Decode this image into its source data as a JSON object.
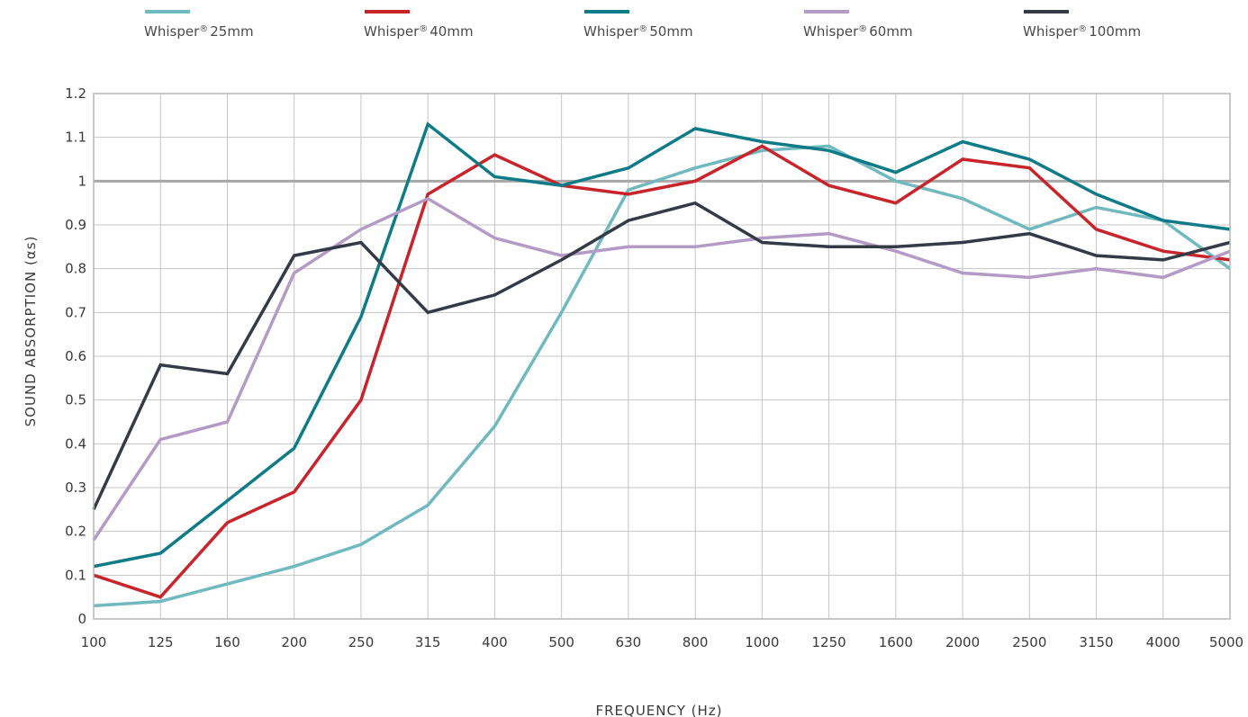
{
  "chart_data": {
    "type": "line",
    "xlabel": "FREQUENCY (Hz)",
    "ylabel": "SOUND ABSORPTION (αs)",
    "categories": [
      "100",
      "125",
      "160",
      "200",
      "250",
      "315",
      "400",
      "500",
      "630",
      "800",
      "1000",
      "1250",
      "1600",
      "2000",
      "2500",
      "3150",
      "4000",
      "5000"
    ],
    "ylim": [
      0,
      1.2
    ],
    "yticks": [
      {
        "value": 0,
        "label": "0"
      },
      {
        "value": 0.1,
        "label": "0.1"
      },
      {
        "value": 0.2,
        "label": "0.2"
      },
      {
        "value": 0.3,
        "label": "0.3"
      },
      {
        "value": 0.4,
        "label": "0.4"
      },
      {
        "value": 0.5,
        "label": "0.5"
      },
      {
        "value": 0.6,
        "label": "0.6"
      },
      {
        "value": 0.7,
        "label": "0.7"
      },
      {
        "value": 0.8,
        "label": "0.8"
      },
      {
        "value": 0.9,
        "label": "0.9"
      },
      {
        "value": 1.0,
        "label": "1"
      },
      {
        "value": 1.1,
        "label": "1.1"
      },
      {
        "value": 1.2,
        "label": "1.2"
      }
    ],
    "reference_line": 1.0,
    "grid": true,
    "legend_position": "top",
    "series": [
      {
        "name": "Whisper",
        "suffix": "25mm",
        "color": "#6fb9bf",
        "values": [
          0.03,
          0.04,
          0.08,
          0.12,
          0.17,
          0.26,
          0.44,
          0.7,
          0.98,
          1.03,
          1.07,
          1.08,
          1.0,
          0.96,
          0.89,
          0.94,
          0.91,
          0.8
        ]
      },
      {
        "name": "Whisper",
        "suffix": "40mm",
        "color": "#c8242b",
        "values": [
          0.1,
          0.05,
          0.22,
          0.29,
          0.5,
          0.97,
          1.06,
          0.99,
          0.97,
          1.0,
          1.08,
          0.99,
          0.95,
          1.05,
          1.03,
          0.89,
          0.84,
          0.82
        ]
      },
      {
        "name": "Whisper",
        "suffix": "50mm",
        "color": "#0e7b86",
        "values": [
          0.12,
          0.15,
          0.27,
          0.39,
          0.69,
          1.13,
          1.01,
          0.99,
          1.03,
          1.12,
          1.09,
          1.07,
          1.02,
          1.09,
          1.05,
          0.97,
          0.91,
          0.89
        ]
      },
      {
        "name": "Whisper",
        "suffix": "60mm",
        "color": "#b49bc6",
        "values": [
          0.18,
          0.41,
          0.45,
          0.79,
          0.89,
          0.96,
          0.87,
          0.83,
          0.85,
          0.85,
          0.87,
          0.88,
          0.84,
          0.79,
          0.78,
          0.8,
          0.78,
          0.84
        ]
      },
      {
        "name": "Whisper",
        "suffix": "100mm",
        "color": "#343a46",
        "values": [
          0.25,
          0.58,
          0.56,
          0.83,
          0.86,
          0.7,
          0.74,
          0.82,
          0.91,
          0.95,
          0.86,
          0.85,
          0.85,
          0.86,
          0.88,
          0.83,
          0.82,
          0.86
        ]
      }
    ]
  },
  "colors": {
    "grid": "#c4c4c4",
    "frame": "#b5b5b5",
    "reference_line": "#a8a8a8",
    "text": "#3a3a3a"
  }
}
